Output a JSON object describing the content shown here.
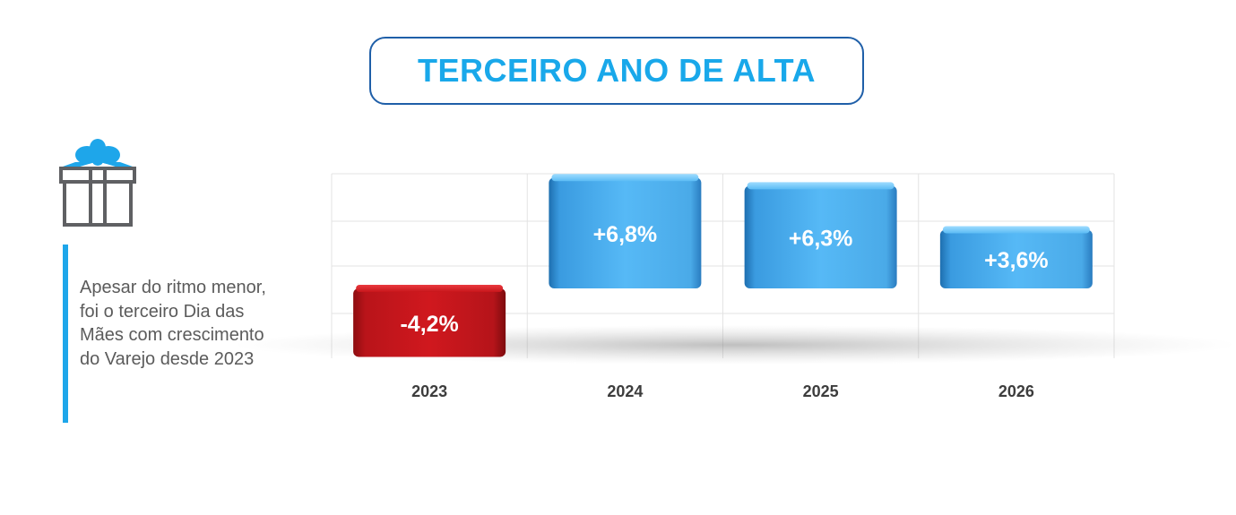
{
  "title": "TERCEIRO ANO DE ALTA",
  "side_note": "Apesar do ritmo menor, foi o terceiro Dia das Mães com crescimento do Varejo desde 2023",
  "icons": {
    "gift": "gift-icon"
  },
  "colors": {
    "title": "#19a8ea",
    "title_border": "#1f5fa8",
    "accent_bar": "#1ea6ea",
    "positive": "#4db8f5",
    "negative": "#c8161b"
  },
  "chart_data": {
    "type": "bar",
    "categories": [
      "2023",
      "2024",
      "2025",
      "2026"
    ],
    "values": [
      -4.2,
      6.8,
      6.3,
      3.6
    ],
    "labels": [
      "-4,2%",
      "+6,8%",
      "+6,3%",
      "+3,6%"
    ],
    "title": "",
    "xlabel": "",
    "ylabel": "",
    "grid": true
  }
}
